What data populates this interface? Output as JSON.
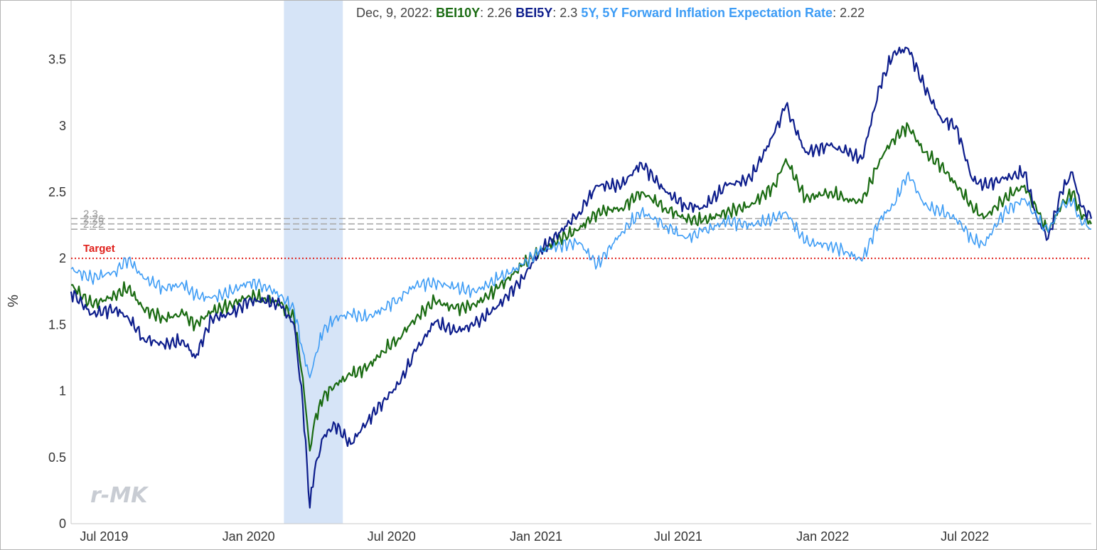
{
  "legend": {
    "date": "Dec, 9, 2022",
    "entries": [
      {
        "name": "BEI10Y",
        "value": "2.26",
        "color": "#1a6b12"
      },
      {
        "name": "BEI5Y",
        "value": "2.3",
        "color": "#0d1d8c"
      },
      {
        "name": "5Y, 5Y Forward Inflation Expectation Rate",
        "value": "2.22",
        "color": "#3d9cf5"
      }
    ]
  },
  "watermark": "r-MK",
  "chart_data": {
    "type": "line",
    "ylabel": "%",
    "ylim": [
      0,
      3.9
    ],
    "yticks": [
      0,
      0.5,
      1,
      1.5,
      2,
      2.5,
      3,
      3.5
    ],
    "ytick_labels": [
      "0",
      "0.5",
      "1",
      "1.5",
      "2",
      "2.5",
      "3",
      "3.5"
    ],
    "xlim": [
      "2019-05-20",
      "2022-12-09"
    ],
    "xticks": [
      "2019-07-01",
      "2020-01-01",
      "2020-07-01",
      "2021-01-01",
      "2021-07-01",
      "2022-01-01",
      "2022-07-01"
    ],
    "xtick_labels": [
      "Jul 2019",
      "Jan 2020",
      "Jul 2020",
      "Jan 2021",
      "Jul 2021",
      "Jan 2022",
      "Jul 2022"
    ],
    "shaded_region": {
      "start": "2020-02-15",
      "end": "2020-04-30",
      "color": "#d6e4f7"
    },
    "reference_lines": [
      {
        "label": "Target",
        "value": 2.0,
        "color": "#e0201b",
        "style": "dotted"
      },
      {
        "label": "2.3",
        "value": 2.3,
        "color": "#aaaaaa",
        "style": "dashed"
      },
      {
        "label": "2.26",
        "value": 2.26,
        "color": "#aaaaaa",
        "style": "dashed"
      },
      {
        "label": "2.22",
        "value": 2.22,
        "color": "#aaaaaa",
        "style": "dashed"
      }
    ],
    "series": [
      {
        "name": "BEI10Y",
        "color": "#1a6b12",
        "points": [
          [
            "2019-05-20",
            1.8
          ],
          [
            "2019-06-15",
            1.65
          ],
          [
            "2019-07-15",
            1.72
          ],
          [
            "2019-08-01",
            1.78
          ],
          [
            "2019-08-20",
            1.62
          ],
          [
            "2019-09-15",
            1.55
          ],
          [
            "2019-10-10",
            1.58
          ],
          [
            "2019-10-25",
            1.5
          ],
          [
            "2019-11-15",
            1.6
          ],
          [
            "2019-12-10",
            1.65
          ],
          [
            "2020-01-01",
            1.72
          ],
          [
            "2020-01-20",
            1.7
          ],
          [
            "2020-02-10",
            1.66
          ],
          [
            "2020-02-28",
            1.55
          ],
          [
            "2020-03-10",
            1.1
          ],
          [
            "2020-03-19",
            0.55
          ],
          [
            "2020-03-25",
            0.78
          ],
          [
            "2020-04-05",
            0.95
          ],
          [
            "2020-04-20",
            1.05
          ],
          [
            "2020-05-10",
            1.12
          ],
          [
            "2020-06-01",
            1.18
          ],
          [
            "2020-06-20",
            1.3
          ],
          [
            "2020-07-10",
            1.4
          ],
          [
            "2020-08-01",
            1.55
          ],
          [
            "2020-08-25",
            1.68
          ],
          [
            "2020-09-20",
            1.62
          ],
          [
            "2020-10-15",
            1.65
          ],
          [
            "2020-11-15",
            1.78
          ],
          [
            "2020-12-15",
            1.95
          ],
          [
            "2021-01-05",
            2.05
          ],
          [
            "2021-02-01",
            2.15
          ],
          [
            "2021-02-25",
            2.22
          ],
          [
            "2021-03-20",
            2.35
          ],
          [
            "2021-04-20",
            2.38
          ],
          [
            "2021-05-15",
            2.5
          ],
          [
            "2021-06-15",
            2.38
          ],
          [
            "2021-07-10",
            2.3
          ],
          [
            "2021-08-01",
            2.28
          ],
          [
            "2021-09-01",
            2.35
          ],
          [
            "2021-10-01",
            2.4
          ],
          [
            "2021-11-01",
            2.55
          ],
          [
            "2021-11-15",
            2.75
          ],
          [
            "2021-12-10",
            2.45
          ],
          [
            "2022-01-10",
            2.5
          ],
          [
            "2022-02-01",
            2.45
          ],
          [
            "2022-02-20",
            2.42
          ],
          [
            "2022-03-15",
            2.75
          ],
          [
            "2022-04-01",
            2.9
          ],
          [
            "2022-04-20",
            3.0
          ],
          [
            "2022-05-10",
            2.8
          ],
          [
            "2022-06-01",
            2.7
          ],
          [
            "2022-06-20",
            2.55
          ],
          [
            "2022-07-10",
            2.4
          ],
          [
            "2022-07-25",
            2.3
          ],
          [
            "2022-08-20",
            2.45
          ],
          [
            "2022-09-15",
            2.55
          ],
          [
            "2022-10-01",
            2.35
          ],
          [
            "2022-10-15",
            2.2
          ],
          [
            "2022-11-01",
            2.4
          ],
          [
            "2022-11-15",
            2.5
          ],
          [
            "2022-11-25",
            2.35
          ],
          [
            "2022-12-09",
            2.26
          ]
        ]
      },
      {
        "name": "BEI5Y",
        "color": "#0d1d8c",
        "points": [
          [
            "2019-05-20",
            1.75
          ],
          [
            "2019-06-15",
            1.58
          ],
          [
            "2019-07-15",
            1.62
          ],
          [
            "2019-08-01",
            1.55
          ],
          [
            "2019-08-20",
            1.4
          ],
          [
            "2019-09-15",
            1.35
          ],
          [
            "2019-10-10",
            1.38
          ],
          [
            "2019-10-25",
            1.25
          ],
          [
            "2019-11-15",
            1.55
          ],
          [
            "2019-12-10",
            1.58
          ],
          [
            "2020-01-01",
            1.68
          ],
          [
            "2020-01-20",
            1.68
          ],
          [
            "2020-02-10",
            1.65
          ],
          [
            "2020-02-28",
            1.5
          ],
          [
            "2020-03-10",
            0.9
          ],
          [
            "2020-03-19",
            0.12
          ],
          [
            "2020-03-25",
            0.4
          ],
          [
            "2020-04-05",
            0.65
          ],
          [
            "2020-04-20",
            0.75
          ],
          [
            "2020-05-10",
            0.6
          ],
          [
            "2020-06-01",
            0.78
          ],
          [
            "2020-06-20",
            0.92
          ],
          [
            "2020-07-10",
            1.05
          ],
          [
            "2020-08-01",
            1.3
          ],
          [
            "2020-08-25",
            1.52
          ],
          [
            "2020-09-20",
            1.45
          ],
          [
            "2020-10-15",
            1.5
          ],
          [
            "2020-11-15",
            1.65
          ],
          [
            "2020-12-15",
            1.85
          ],
          [
            "2021-01-05",
            2.05
          ],
          [
            "2021-02-01",
            2.2
          ],
          [
            "2021-02-25",
            2.35
          ],
          [
            "2021-03-20",
            2.55
          ],
          [
            "2021-04-20",
            2.55
          ],
          [
            "2021-05-15",
            2.72
          ],
          [
            "2021-06-15",
            2.5
          ],
          [
            "2021-07-10",
            2.4
          ],
          [
            "2021-08-01",
            2.38
          ],
          [
            "2021-09-01",
            2.55
          ],
          [
            "2021-10-01",
            2.6
          ],
          [
            "2021-11-01",
            2.95
          ],
          [
            "2021-11-15",
            3.15
          ],
          [
            "2021-12-10",
            2.8
          ],
          [
            "2022-01-10",
            2.85
          ],
          [
            "2022-02-01",
            2.8
          ],
          [
            "2022-02-20",
            2.75
          ],
          [
            "2022-03-15",
            3.3
          ],
          [
            "2022-04-01",
            3.55
          ],
          [
            "2022-04-20",
            3.58
          ],
          [
            "2022-05-10",
            3.3
          ],
          [
            "2022-06-01",
            3.05
          ],
          [
            "2022-06-20",
            3.0
          ],
          [
            "2022-07-10",
            2.6
          ],
          [
            "2022-07-25",
            2.55
          ],
          [
            "2022-08-20",
            2.6
          ],
          [
            "2022-09-15",
            2.65
          ],
          [
            "2022-10-01",
            2.3
          ],
          [
            "2022-10-15",
            2.15
          ],
          [
            "2022-11-01",
            2.5
          ],
          [
            "2022-11-15",
            2.65
          ],
          [
            "2022-11-25",
            2.4
          ],
          [
            "2022-12-09",
            2.3
          ]
        ]
      },
      {
        "name": "5Y, 5Y Forward Inflation Expectation Rate",
        "color": "#3d9cf5",
        "points": [
          [
            "2019-05-20",
            1.92
          ],
          [
            "2019-06-15",
            1.85
          ],
          [
            "2019-07-15",
            1.9
          ],
          [
            "2019-08-01",
            2.0
          ],
          [
            "2019-08-20",
            1.85
          ],
          [
            "2019-09-15",
            1.78
          ],
          [
            "2019-10-10",
            1.8
          ],
          [
            "2019-10-25",
            1.72
          ],
          [
            "2019-11-15",
            1.7
          ],
          [
            "2019-12-10",
            1.75
          ],
          [
            "2020-01-01",
            1.82
          ],
          [
            "2020-01-20",
            1.8
          ],
          [
            "2020-02-10",
            1.72
          ],
          [
            "2020-02-28",
            1.62
          ],
          [
            "2020-03-10",
            1.3
          ],
          [
            "2020-03-19",
            1.1
          ],
          [
            "2020-03-25",
            1.25
          ],
          [
            "2020-04-05",
            1.45
          ],
          [
            "2020-04-20",
            1.55
          ],
          [
            "2020-05-10",
            1.58
          ],
          [
            "2020-06-01",
            1.55
          ],
          [
            "2020-06-20",
            1.62
          ],
          [
            "2020-07-10",
            1.7
          ],
          [
            "2020-08-01",
            1.8
          ],
          [
            "2020-08-25",
            1.82
          ],
          [
            "2020-09-20",
            1.78
          ],
          [
            "2020-10-15",
            1.75
          ],
          [
            "2020-11-15",
            1.85
          ],
          [
            "2020-12-15",
            1.95
          ],
          [
            "2021-01-05",
            2.05
          ],
          [
            "2021-02-01",
            2.1
          ],
          [
            "2021-02-25",
            2.12
          ],
          [
            "2021-03-20",
            1.95
          ],
          [
            "2021-04-20",
            2.2
          ],
          [
            "2021-05-15",
            2.35
          ],
          [
            "2021-06-15",
            2.25
          ],
          [
            "2021-07-10",
            2.15
          ],
          [
            "2021-08-01",
            2.2
          ],
          [
            "2021-09-01",
            2.28
          ],
          [
            "2021-10-01",
            2.25
          ],
          [
            "2021-11-01",
            2.3
          ],
          [
            "2021-11-15",
            2.35
          ],
          [
            "2021-12-10",
            2.12
          ],
          [
            "2022-01-10",
            2.1
          ],
          [
            "2022-02-01",
            2.05
          ],
          [
            "2022-02-20",
            1.98
          ],
          [
            "2022-03-15",
            2.3
          ],
          [
            "2022-04-01",
            2.4
          ],
          [
            "2022-04-20",
            2.65
          ],
          [
            "2022-05-10",
            2.4
          ],
          [
            "2022-06-01",
            2.35
          ],
          [
            "2022-06-20",
            2.3
          ],
          [
            "2022-07-10",
            2.15
          ],
          [
            "2022-07-25",
            2.1
          ],
          [
            "2022-08-20",
            2.35
          ],
          [
            "2022-09-15",
            2.45
          ],
          [
            "2022-10-01",
            2.3
          ],
          [
            "2022-10-15",
            2.2
          ],
          [
            "2022-11-01",
            2.4
          ],
          [
            "2022-11-15",
            2.42
          ],
          [
            "2022-11-25",
            2.3
          ],
          [
            "2022-12-09",
            2.22
          ]
        ]
      }
    ]
  }
}
